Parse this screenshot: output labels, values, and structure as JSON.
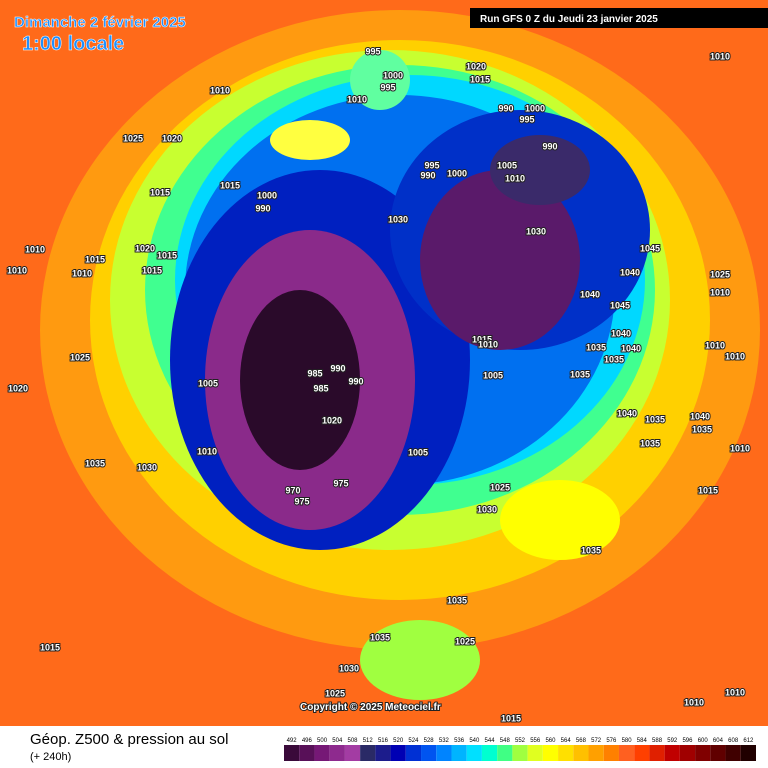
{
  "header": {
    "date": "Dimanche 2 février 2025",
    "time": "1:00 locale",
    "run": "Run GFS 0 Z du Jeudi 23 janvier 2025"
  },
  "map": {
    "pressure_labels": [
      995,
      1000,
      995,
      1020,
      1015,
      1010,
      1010,
      1010,
      990,
      1000,
      995,
      1025,
      1020,
      990,
      995,
      990,
      1000,
      1005,
      1010,
      1015,
      1015,
      1000,
      990,
      1030,
      1030,
      1010,
      1015,
      1020,
      1015,
      1010,
      1010,
      1015,
      1045,
      1040,
      1025,
      1010,
      1040,
      1045,
      1040,
      1035,
      1040,
      1035,
      1015,
      1010,
      1005,
      1035,
      1025,
      990,
      985,
      985,
      990,
      1005,
      1020,
      1040,
      1035,
      1040,
      1035,
      1035,
      1010,
      1020,
      1010,
      1035,
      1030,
      1025,
      1030,
      1015,
      970,
      975,
      975,
      1035,
      1035,
      1035,
      1025,
      1030,
      1025,
      1015,
      1010,
      1010,
      1015,
      1005,
      1010,
      1010
    ]
  },
  "copyright": "Copyright © 2025 Meteociel.fr",
  "footer": {
    "title": "Géop. Z500 & pression au sol",
    "subtitle": "(+ 240h)"
  },
  "legend": {
    "values": [
      492,
      496,
      500,
      504,
      508,
      512,
      516,
      520,
      524,
      528,
      532,
      536,
      540,
      544,
      548,
      552,
      556,
      560,
      564,
      568,
      572,
      576,
      580,
      584,
      588,
      592,
      596,
      600,
      604,
      608,
      612
    ],
    "colors": [
      "#3a0a3a",
      "#581058",
      "#761876",
      "#8e2a8e",
      "#a33ca3",
      "#2a2a66",
      "#1c1c8c",
      "#0000b4",
      "#0030d4",
      "#0054f0",
      "#0084ff",
      "#00b4ff",
      "#00e0ff",
      "#00ffd0",
      "#40ff84",
      "#a0ff40",
      "#e0ff20",
      "#ffff00",
      "#ffe000",
      "#ffc000",
      "#ffa000",
      "#ff8000",
      "#ff6020",
      "#ff4000",
      "#e02000",
      "#c00000",
      "#a00000",
      "#800000",
      "#600000",
      "#400000",
      "#200000"
    ]
  }
}
